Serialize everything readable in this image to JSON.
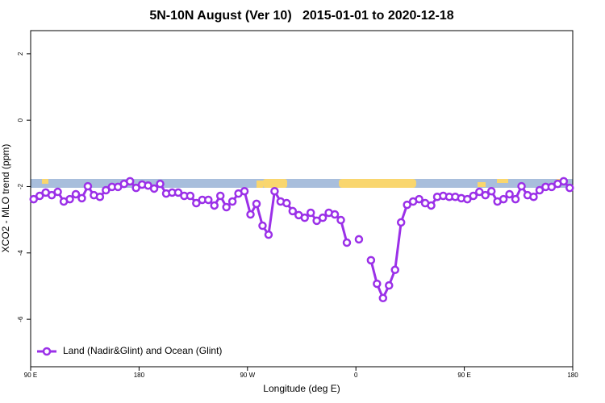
{
  "chart_data": {
    "type": "line",
    "title": "5N-10N August (Ver 10)   2015-01-01 to 2020-12-18",
    "x_label": "Longitude (deg E)",
    "y_label": "XCO2 - MLO trend (ppm)",
    "x": [
      92.5,
      97.5,
      102.5,
      107.5,
      112.5,
      117.5,
      122.5,
      127.5,
      132.5,
      137.5,
      142.5,
      147.5,
      152.5,
      157.5,
      162.5,
      167.5,
      172.5,
      177.5,
      182.5,
      187.5,
      192.5,
      197.5,
      202.5,
      207.5,
      212.5,
      217.5,
      222.5,
      227.5,
      232.5,
      237.5,
      242.5,
      247.5,
      252.5,
      257.5,
      262.5,
      267.5,
      272.5,
      277.5,
      282.5,
      287.5,
      292.5,
      297.5,
      302.5,
      307.5,
      312.5,
      317.5,
      322.5,
      327.5,
      332.5,
      337.5,
      342.5,
      347.5,
      352.5,
      357.5,
      362.5,
      367.5,
      372.5,
      377.5,
      382.5,
      387.5,
      392.5,
      397.5,
      402.5,
      407.5,
      412.5,
      417.5,
      422.5,
      427.5,
      432.5,
      437.5,
      442.5,
      447.5,
      452.5,
      457.5,
      462.5,
      467.5,
      472.5,
      477.5,
      482.5,
      487.5,
      492.5,
      497.5,
      502.5,
      507.5,
      512.5,
      517.5,
      522.5,
      527.5,
      532.5,
      537.5
    ],
    "series": [
      {
        "name": "Land (Nadir&Glint) and Ocean (Glint)",
        "color": "#9b30e8",
        "values": [
          -2.38,
          -2.28,
          -2.18,
          -2.26,
          -2.16,
          -2.45,
          -2.38,
          -2.23,
          -2.35,
          -1.99,
          -2.26,
          -2.31,
          -2.11,
          -2.01,
          -2.01,
          -1.92,
          -1.84,
          -2.04,
          -1.94,
          -1.97,
          -2.06,
          -1.92,
          -2.21,
          -2.18,
          -2.18,
          -2.28,
          -2.28,
          -2.5,
          -2.4,
          -2.4,
          -2.57,
          -2.28,
          -2.62,
          -2.45,
          -2.21,
          -2.14,
          -2.84,
          -2.52,
          -3.18,
          -3.45,
          -2.14,
          -2.45,
          -2.5,
          -2.74,
          -2.86,
          -2.94,
          -2.79,
          -3.03,
          -2.94,
          -2.79,
          -2.84,
          -3.01,
          -3.69,
          null,
          -3.59,
          null,
          -4.22,
          -4.93,
          -5.36,
          -4.98,
          -4.51,
          -3.08,
          -2.55,
          -2.45,
          -2.38,
          -2.5,
          -2.57,
          -2.31,
          -2.28,
          -2.31,
          -2.31,
          -2.35,
          -2.38,
          -2.28,
          -2.16,
          -2.26,
          -2.14,
          -2.45,
          -2.38,
          -2.23,
          -2.38,
          -1.99,
          -2.26,
          -2.31,
          -2.11,
          -2.01,
          -2.01,
          -1.92,
          -1.84,
          -2.04
        ]
      }
    ],
    "xlim": [
      90,
      540
    ],
    "xticks": [
      {
        "value": 90,
        "label": "90 E"
      },
      180,
      {
        "value": 270,
        "label": "90 W"
      },
      {
        "value": 360,
        "label": "0"
      },
      {
        "value": 450,
        "label": "90 E"
      },
      {
        "value": 540,
        "label": "180"
      }
    ],
    "ylim": [
      -7.43,
      2.7
    ],
    "yticks": [
      2,
      0,
      -2,
      -4,
      -6
    ],
    "legend": "bottom-left"
  }
}
